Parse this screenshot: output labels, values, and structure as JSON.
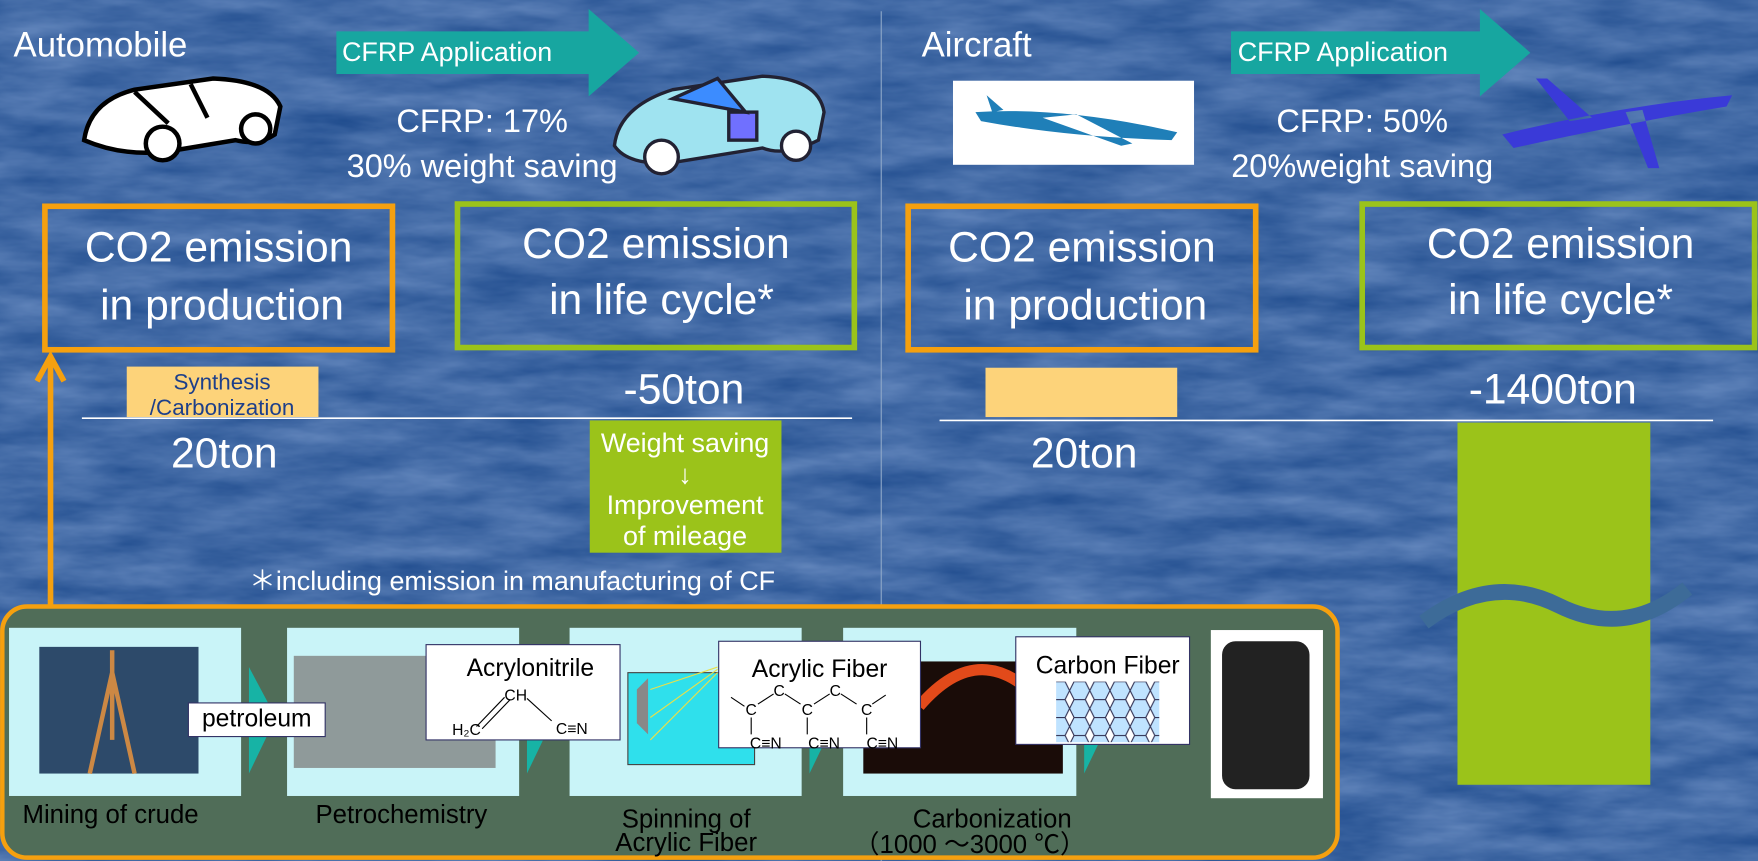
{
  "automobile": {
    "title": "Automobile",
    "application": "CFRP Application",
    "cfrp_share": "CFRP: 17%",
    "weight_saving": "30% weight saving",
    "production_box": [
      "CO2 emission",
      "in production"
    ],
    "lifecycle_box": [
      "CO2 emission",
      "in life cycle*"
    ],
    "production_stage": [
      "Synthesis",
      "/Carbonization"
    ],
    "production_emission": "20ton",
    "lifecycle_emission": "-50ton",
    "lifecycle_effect": [
      "Weight saving",
      "↓",
      "Improvement",
      "of mileage"
    ]
  },
  "aircraft": {
    "title": "Aircraft",
    "application": "CFRP Application",
    "cfrp_share": "CFRP: 50%",
    "weight_saving": "20%weight saving",
    "production_box": [
      "CO2 emission",
      "in production"
    ],
    "lifecycle_box": [
      "CO2 emission",
      "in life cycle*"
    ],
    "production_emission": "20ton",
    "lifecycle_emission": "-1400ton"
  },
  "footnote": "＊including emission  in manufacturing of CF",
  "process": {
    "steps": [
      {
        "label": [
          "Mining of crude"
        ],
        "tag": "petroleum"
      },
      {
        "label": [
          "Petrochemistry"
        ],
        "tag": "Acrylonitrile",
        "formula": [
          "CH",
          "H₂C",
          "C≡N"
        ]
      },
      {
        "label": [
          "Spinning of",
          "Acrylic Fiber"
        ],
        "tag": "Acrylic Fiber",
        "atoms": [
          "C",
          "C",
          "C",
          "C",
          "C"
        ],
        "groups": [
          "C≡N",
          "C≡N",
          "C≡N"
        ]
      },
      {
        "label": [
          "Carbonization",
          "（1000 ～3000 ℃）"
        ],
        "tag": "Carbon Fiber"
      }
    ]
  }
}
